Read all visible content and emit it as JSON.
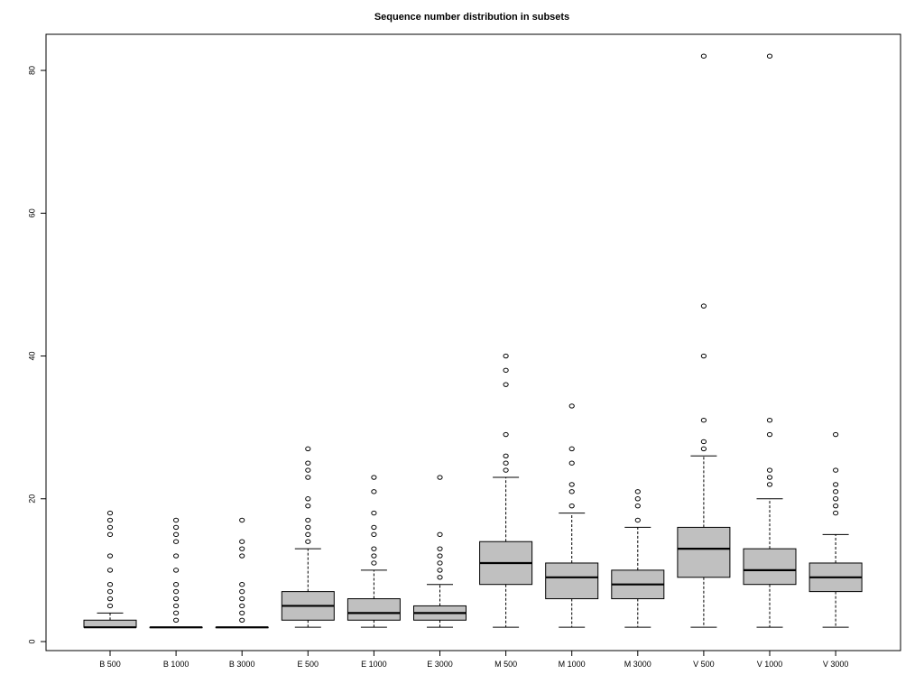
{
  "chart_data": {
    "type": "box",
    "title": "Sequence number distribution in subsets",
    "xlabel": "",
    "ylabel": "",
    "ylim": [
      0,
      85
    ],
    "yticks": [
      0,
      20,
      40,
      60,
      80
    ],
    "categories": [
      "B 500",
      "B 1000",
      "B 3000",
      "E 500",
      "E 1000",
      "E 3000",
      "M 500",
      "M 1000",
      "M 3000",
      "V 500",
      "V 1000",
      "V 3000"
    ],
    "box_color": "#c0c0c0",
    "line_color": "#000000",
    "grid": false,
    "boxes": [
      {
        "label": "B 500",
        "whisker_low": 2,
        "q1": 2,
        "median": 2,
        "q3": 3,
        "whisker_high": 4,
        "outliers": [
          5,
          6,
          7,
          8,
          10,
          12,
          15,
          16,
          17,
          18
        ]
      },
      {
        "label": "B 1000",
        "whisker_low": 2,
        "q1": 2,
        "median": 2,
        "q3": 2,
        "whisker_high": 2,
        "outliers": [
          3,
          4,
          5,
          6,
          7,
          8,
          10,
          12,
          14,
          15,
          16,
          17
        ]
      },
      {
        "label": "B 3000",
        "whisker_low": 2,
        "q1": 2,
        "median": 2,
        "q3": 2,
        "whisker_high": 2,
        "outliers": [
          3,
          4,
          5,
          6,
          7,
          8,
          12,
          13,
          14,
          17
        ]
      },
      {
        "label": "E 500",
        "whisker_low": 2,
        "q1": 3,
        "median": 5,
        "q3": 7,
        "whisker_high": 13,
        "outliers": [
          14,
          15,
          16,
          17,
          19,
          20,
          23,
          24,
          25,
          27
        ]
      },
      {
        "label": "E 1000",
        "whisker_low": 2,
        "q1": 3,
        "median": 4,
        "q3": 6,
        "whisker_high": 10,
        "outliers": [
          11,
          12,
          13,
          15,
          16,
          18,
          21,
          23
        ]
      },
      {
        "label": "E 3000",
        "whisker_low": 2,
        "q1": 3,
        "median": 4,
        "q3": 5,
        "whisker_high": 8,
        "outliers": [
          9,
          10,
          11,
          12,
          13,
          15,
          23
        ]
      },
      {
        "label": "M 500",
        "whisker_low": 2,
        "q1": 8,
        "median": 11,
        "q3": 14,
        "whisker_high": 23,
        "outliers": [
          24,
          25,
          26,
          29,
          36,
          38,
          40
        ]
      },
      {
        "label": "M 1000",
        "whisker_low": 2,
        "q1": 6,
        "median": 9,
        "q3": 11,
        "whisker_high": 18,
        "outliers": [
          19,
          21,
          22,
          25,
          27,
          33
        ]
      },
      {
        "label": "M 3000",
        "whisker_low": 2,
        "q1": 6,
        "median": 8,
        "q3": 10,
        "whisker_high": 16,
        "outliers": [
          17,
          19,
          20,
          21
        ]
      },
      {
        "label": "V 500",
        "whisker_low": 2,
        "q1": 9,
        "median": 13,
        "q3": 16,
        "whisker_high": 26,
        "outliers": [
          27,
          28,
          31,
          40,
          47,
          82
        ]
      },
      {
        "label": "V 1000",
        "whisker_low": 2,
        "q1": 8,
        "median": 10,
        "q3": 13,
        "whisker_high": 20,
        "outliers": [
          22,
          23,
          24,
          29,
          31,
          82
        ]
      },
      {
        "label": "V 3000",
        "whisker_low": 2,
        "q1": 7,
        "median": 9,
        "q3": 11,
        "whisker_high": 15,
        "outliers": [
          18,
          19,
          20,
          21,
          22,
          24,
          29
        ]
      }
    ]
  }
}
